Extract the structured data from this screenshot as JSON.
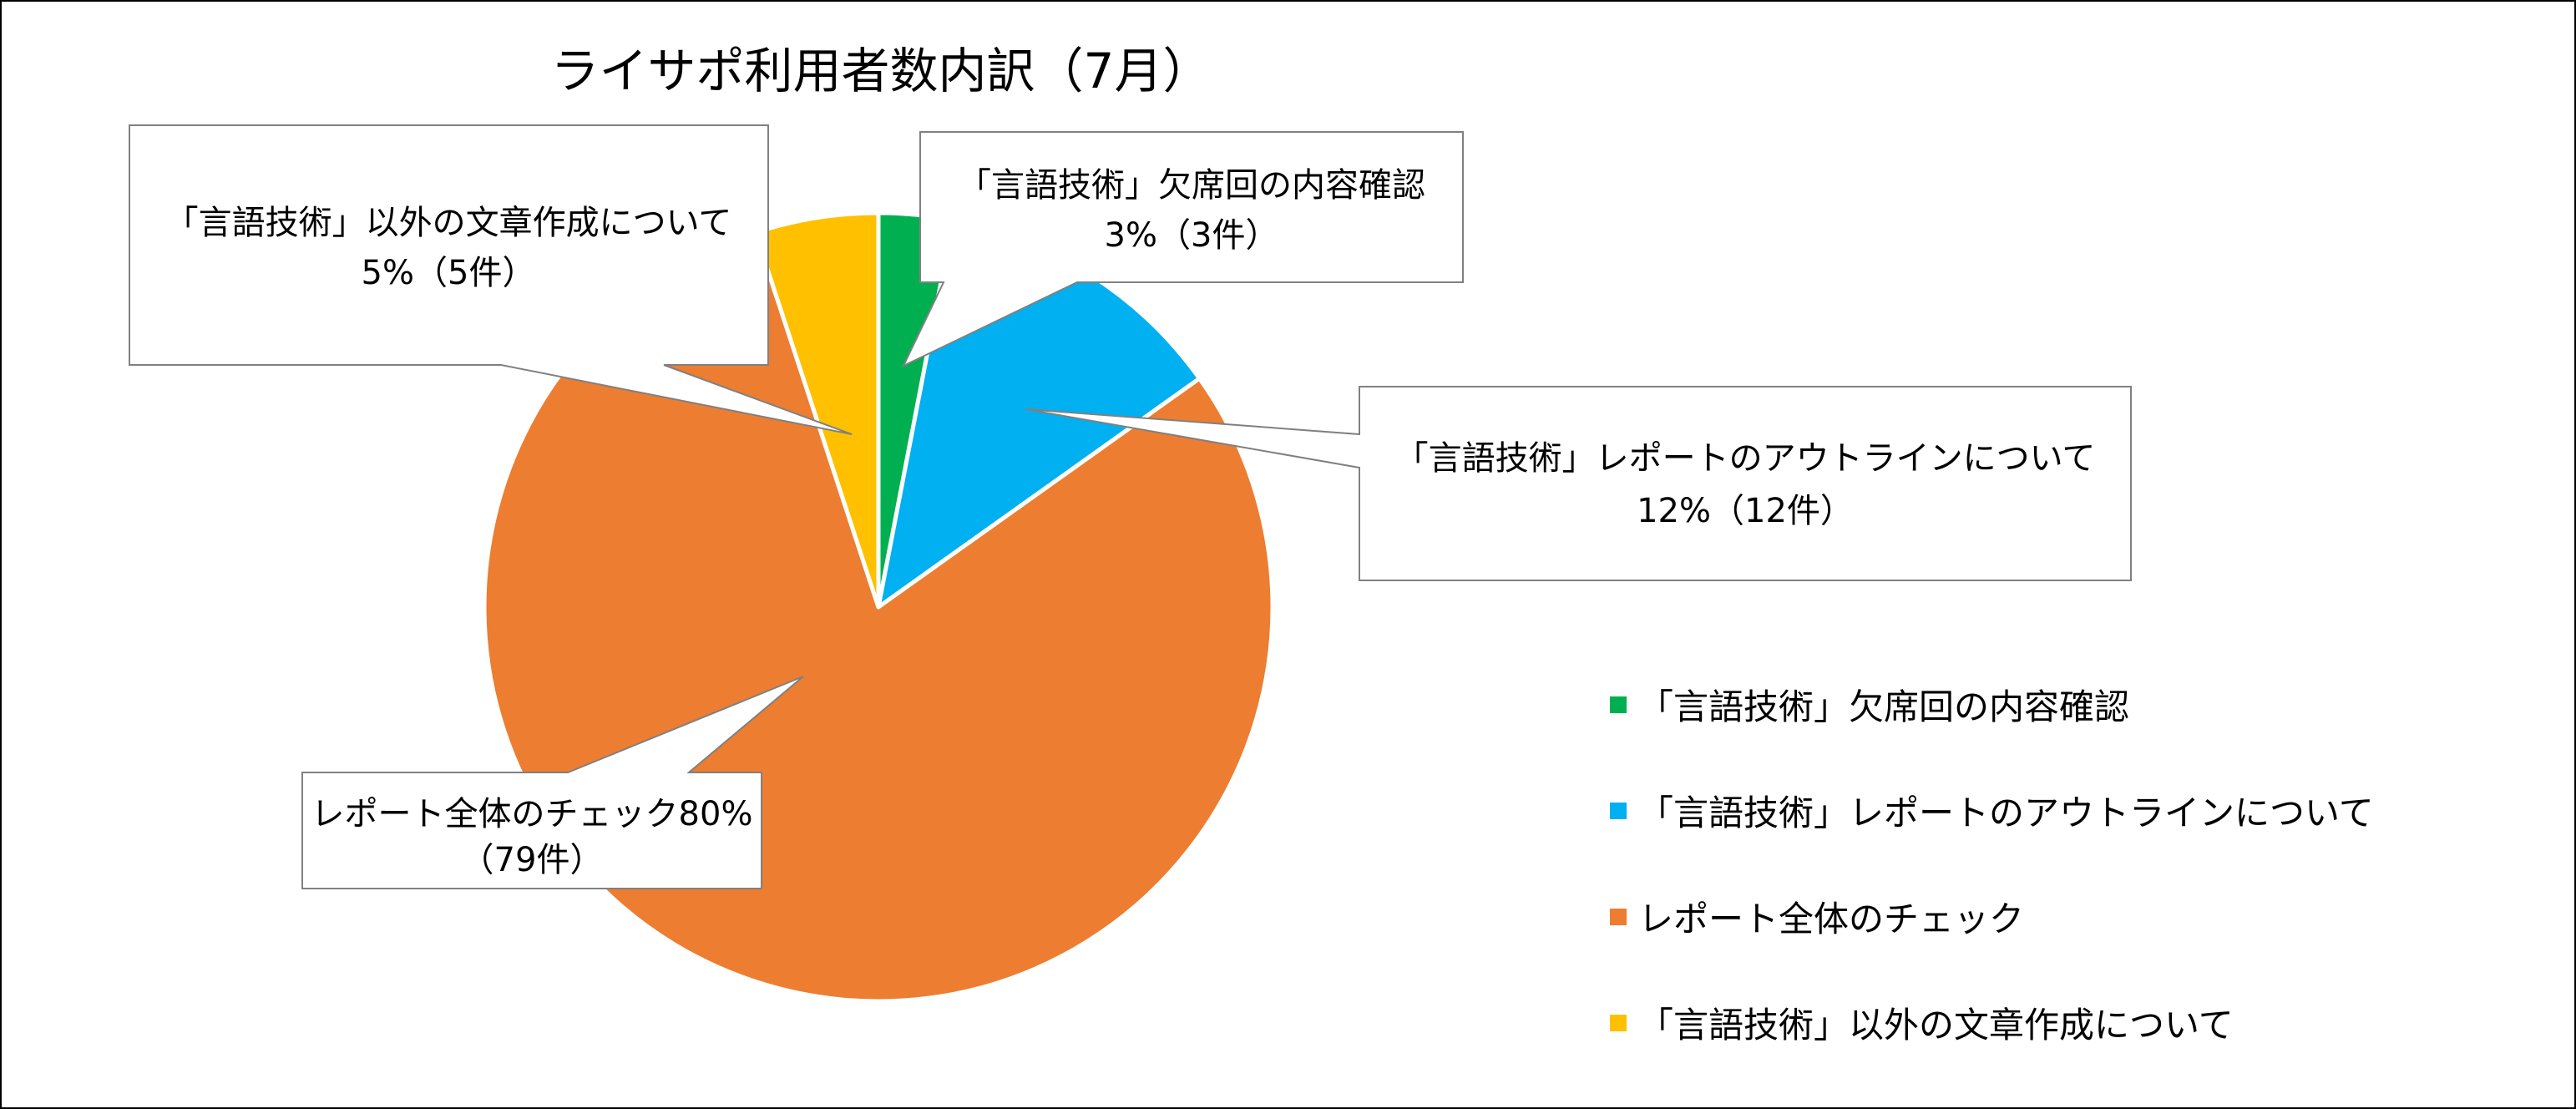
{
  "chart_data": {
    "type": "pie",
    "title": "ライサポ利用者数内訳（7月）",
    "slices": [
      {
        "name": "「言語技術」欠席回の内容確認",
        "value": 3,
        "percent": "3%",
        "count_label": "（3件）",
        "color": "#00B050"
      },
      {
        "name": "「言語技術」レポートのアウトラインについて",
        "value": 12,
        "percent": "12%",
        "count_label": "（12件）",
        "color": "#00B0F0"
      },
      {
        "name": "レポート全体のチェック",
        "value": 79,
        "percent": "80%",
        "count_label": "（79件）",
        "color": "#ED7D31"
      },
      {
        "name": "「言語技術」以外の文章作成について",
        "value": 5,
        "percent": "5%",
        "count_label": "（5件）",
        "color": "#FFC000"
      }
    ],
    "start_angle_deg": 0,
    "direction": "clockwise",
    "legend_position": "right",
    "data_labels": [
      {
        "line1": "「言語技術」欠席回の内容確認",
        "line2": "3%（3件）"
      },
      {
        "line1": "「言語技術」レポートのアウトラインについて",
        "line2": "12%（12件）"
      },
      {
        "line1": "レポート全体のチェック80%",
        "line2": "（79件）"
      },
      {
        "line1": "「言語技術」以外の文章作成について",
        "line2": "5%（5件）"
      }
    ]
  }
}
